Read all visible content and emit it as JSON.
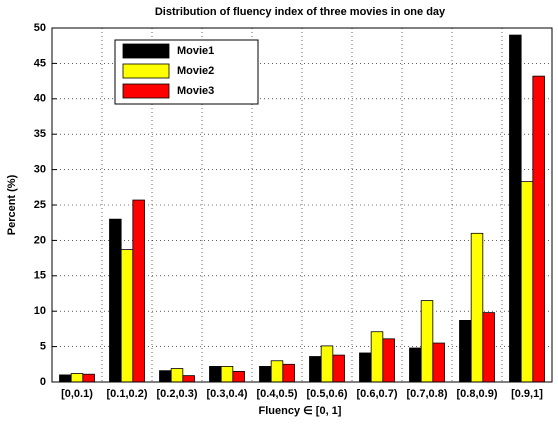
{
  "chart_data": {
    "type": "bar",
    "title": "Distribution of fluency index of three movies in one day",
    "x_label": "Fluency ∈ [0, 1]",
    "y_label": "Percent (%)",
    "categories": [
      "[0,0.1)",
      "[0.1,0.2)",
      "[0.2,0.3)",
      "[0.3,0.4)",
      "[0.4,0.5)",
      "[0.5,0.6)",
      "[0.6,0.7)",
      "[0.7,0.8)",
      "[0.8,0.9)",
      "[0.9,1]"
    ],
    "series": [
      {
        "name": "Movie1",
        "color": "#000000",
        "values": [
          1.0,
          23,
          1.6,
          2.2,
          2.2,
          3.6,
          4.1,
          4.8,
          8.7,
          49
        ]
      },
      {
        "name": "Movie2",
        "color": "#ffff00",
        "values": [
          1.2,
          18.7,
          1.9,
          2.2,
          3.0,
          5.1,
          7.1,
          11.5,
          21,
          28.3
        ]
      },
      {
        "name": "Movie3",
        "color": "#ff0000",
        "values": [
          1.1,
          25.7,
          0.9,
          1.5,
          2.5,
          3.8,
          6.1,
          5.5,
          9.8,
          43.2
        ]
      }
    ],
    "ylim": [
      0,
      50
    ],
    "yticks": [
      0,
      5,
      10,
      15,
      20,
      25,
      30,
      35,
      40,
      45,
      50
    ],
    "grid": true,
    "legend": "upper-left"
  }
}
